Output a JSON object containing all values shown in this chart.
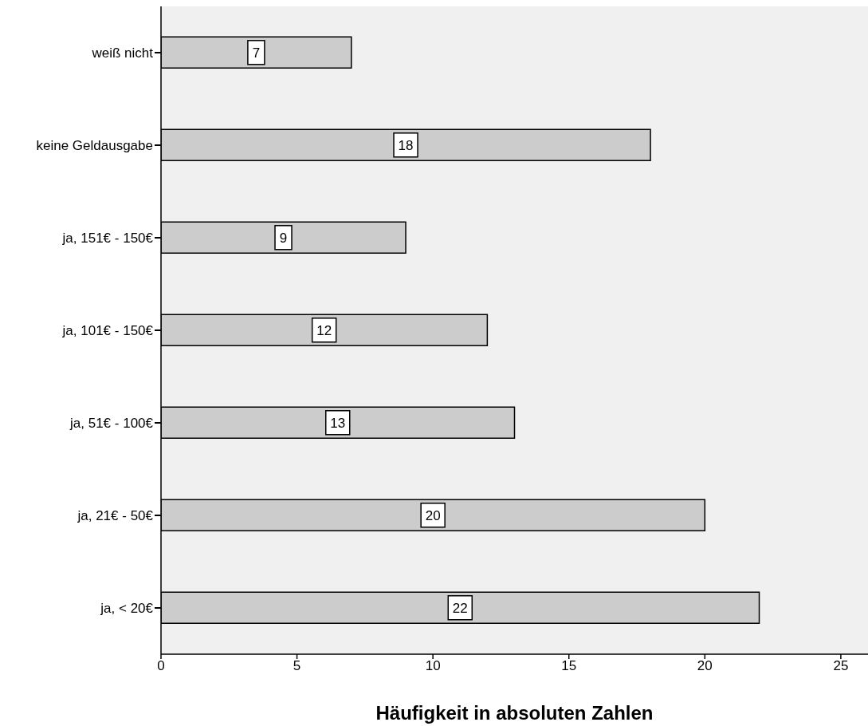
{
  "chart_data": {
    "type": "bar",
    "orientation": "horizontal",
    "categories": [
      "weiß nicht",
      "keine Geldausgabe",
      "ja, 151€ - 150€",
      "ja, 101€ - 150€",
      "ja, 51€ - 100€",
      "ja, 21€ - 50€",
      "ja, < 20€"
    ],
    "values": [
      7,
      18,
      9,
      12,
      13,
      20,
      22
    ],
    "color": "#cccccc",
    "xlabel": "Häufigkeit in absoluten Zahlen",
    "xlim": [
      0,
      26
    ],
    "xticks": [
      0,
      5,
      10,
      15,
      20,
      25
    ],
    "data_labels": true
  }
}
